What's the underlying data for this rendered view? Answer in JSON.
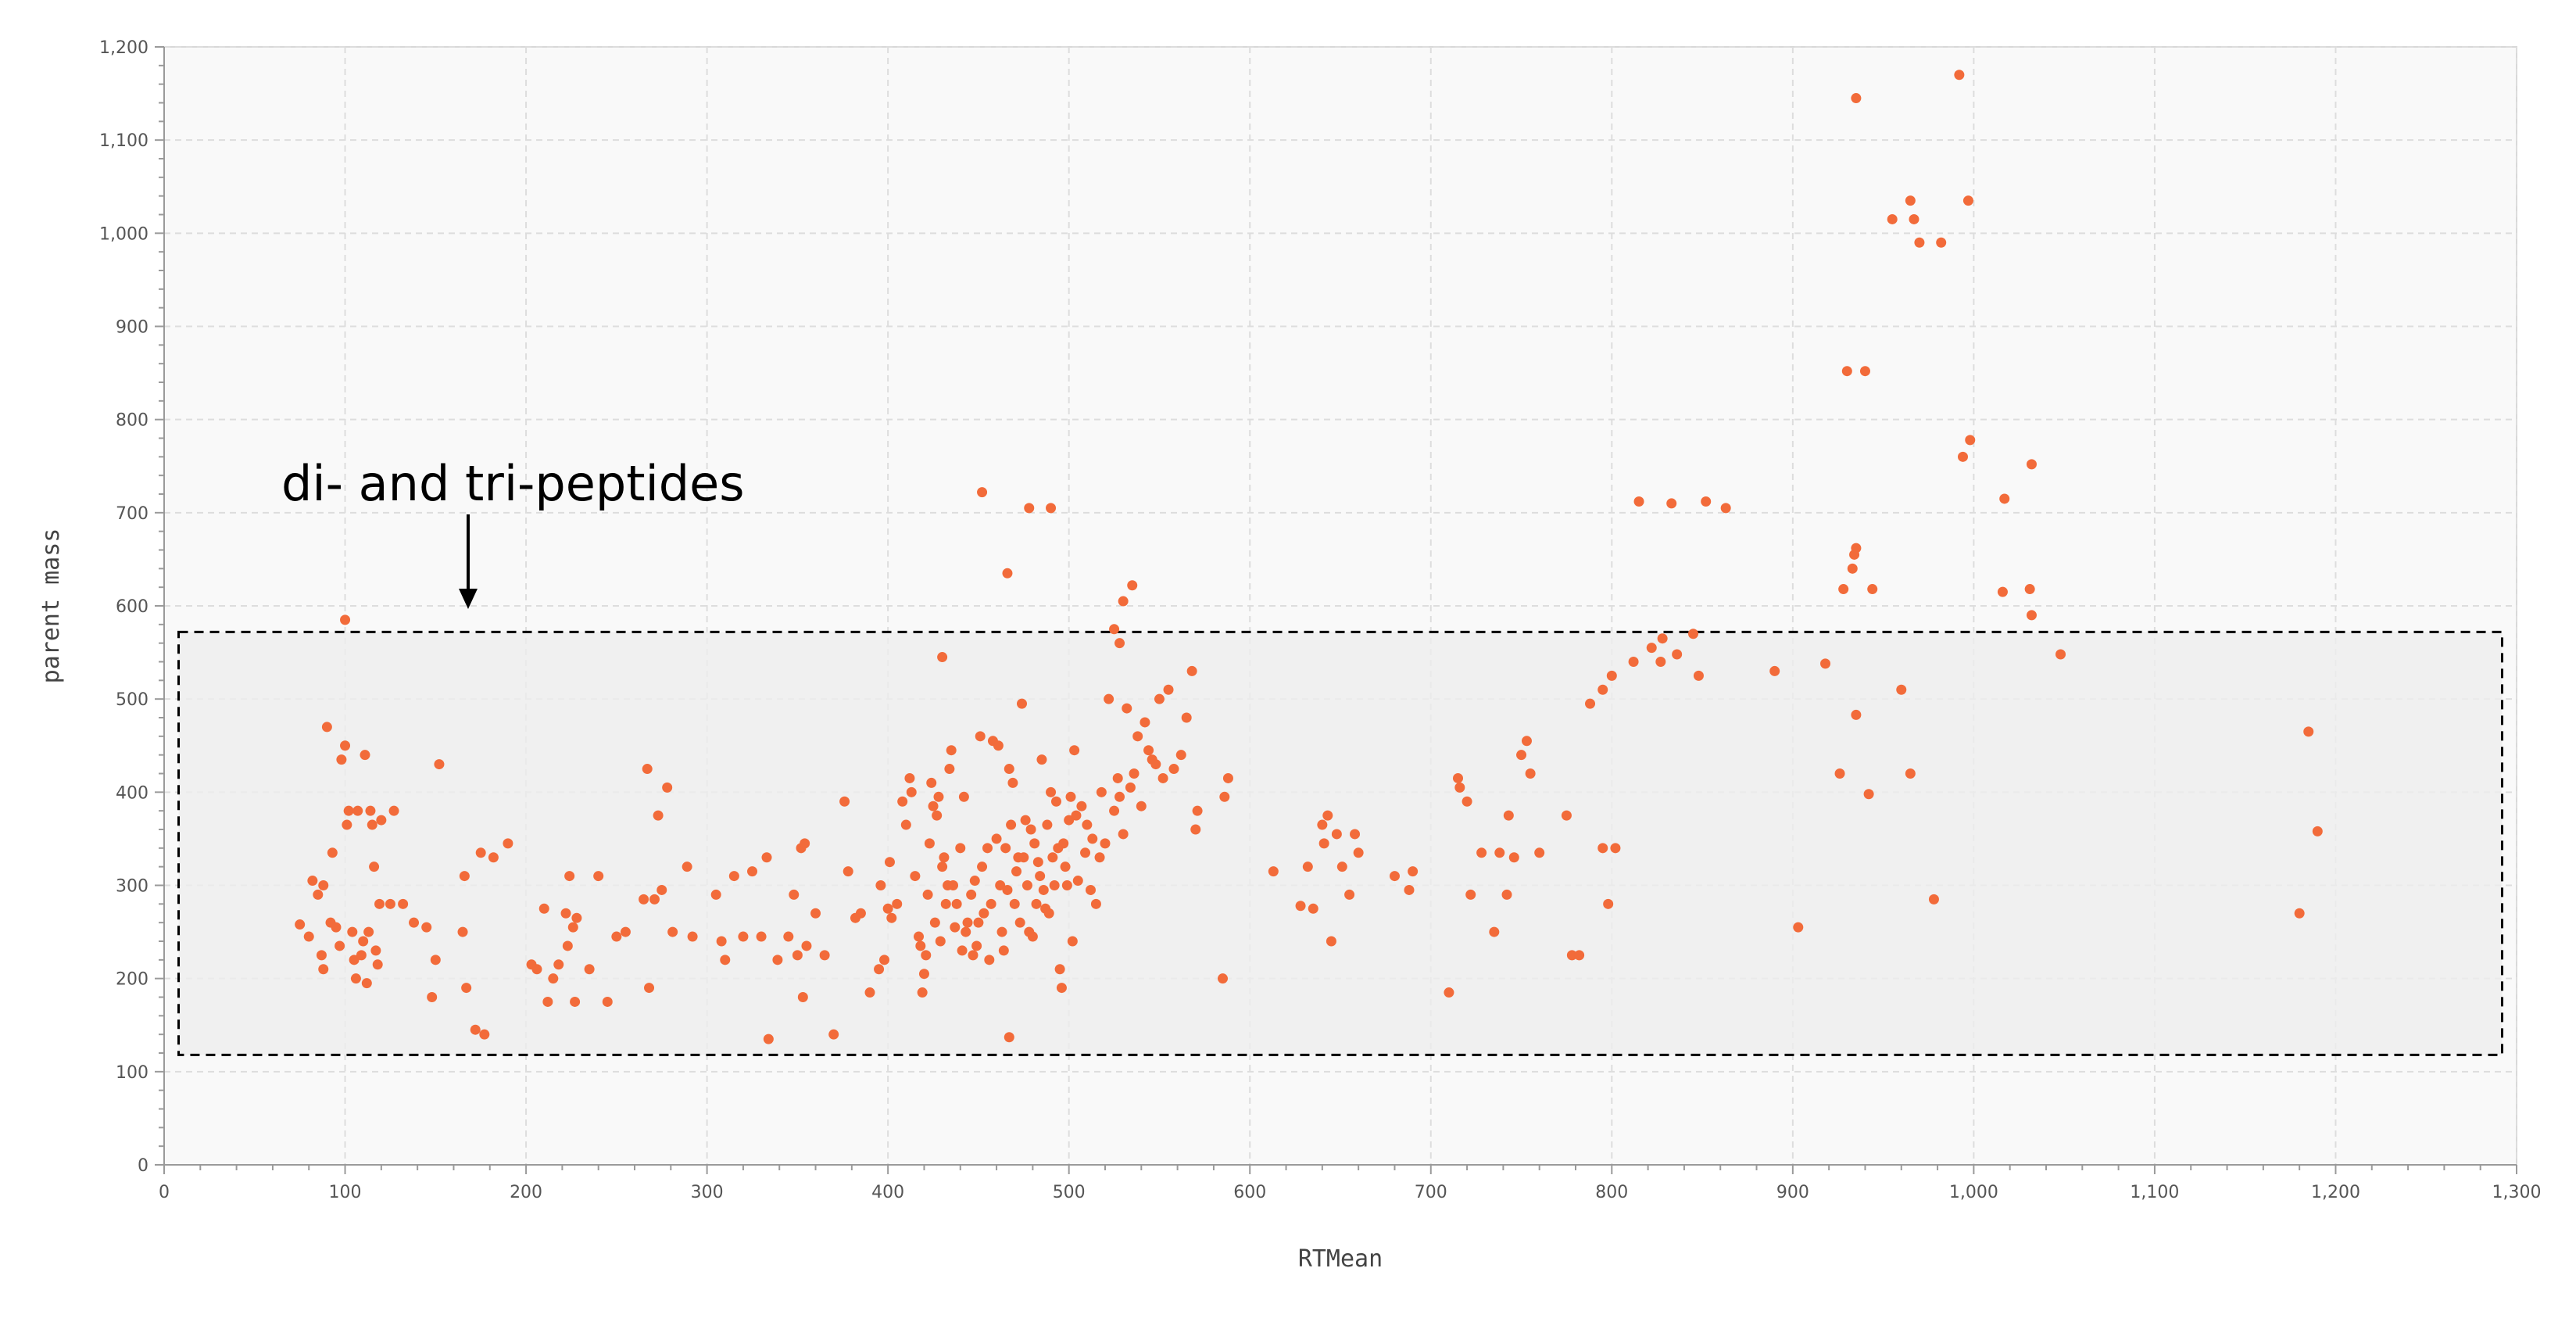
{
  "chart_data": {
    "type": "scatter",
    "title": "",
    "xlabel": "RTMean",
    "ylabel": "parent mass",
    "xlim": [
      0,
      1300
    ],
    "ylim": [
      0,
      1200
    ],
    "x_ticks": [
      "0",
      "100",
      "200",
      "300",
      "400",
      "500",
      "600",
      "700",
      "800",
      "900",
      "1,000",
      "1,100",
      "1,200",
      "1,300"
    ],
    "y_ticks": [
      "0",
      "100",
      "200",
      "300",
      "400",
      "500",
      "600",
      "700",
      "800",
      "900",
      "1,000",
      "1,100",
      "1,200"
    ],
    "grid": true,
    "point_color": "#f26b3a",
    "annotation": {
      "text": "di- and tri-peptides",
      "arrow_to": [
        168,
        600
      ],
      "box": {
        "x": [
          8,
          1292
        ],
        "y": [
          118,
          572
        ]
      }
    },
    "points": [
      [
        100,
        585
      ],
      [
        452,
        722
      ],
      [
        478,
        705
      ],
      [
        490,
        705
      ],
      [
        466,
        635
      ],
      [
        535,
        622
      ],
      [
        530,
        605
      ],
      [
        525,
        575
      ],
      [
        528,
        560
      ],
      [
        430,
        545
      ],
      [
        935,
        1145
      ],
      [
        992,
        1170
      ],
      [
        955,
        1015
      ],
      [
        965,
        1035
      ],
      [
        967,
        1015
      ],
      [
        970,
        990
      ],
      [
        982,
        990
      ],
      [
        997,
        1035
      ],
      [
        930,
        852
      ],
      [
        940,
        852
      ],
      [
        994,
        760
      ],
      [
        998,
        778
      ],
      [
        1017,
        715
      ],
      [
        1032,
        752
      ],
      [
        815,
        712
      ],
      [
        833,
        710
      ],
      [
        852,
        712
      ],
      [
        863,
        705
      ],
      [
        928,
        618
      ],
      [
        933,
        640
      ],
      [
        934,
        655
      ],
      [
        935,
        662
      ],
      [
        944,
        618
      ],
      [
        1016,
        615
      ],
      [
        1031,
        618
      ],
      [
        1032,
        590
      ],
      [
        1048,
        548
      ],
      [
        828,
        565
      ],
      [
        845,
        570
      ],
      [
        822,
        555
      ],
      [
        827,
        540
      ],
      [
        836,
        548
      ],
      [
        812,
        540
      ],
      [
        848,
        525
      ],
      [
        800,
        525
      ],
      [
        795,
        510
      ],
      [
        788,
        495
      ],
      [
        890,
        530
      ],
      [
        918,
        538
      ],
      [
        960,
        510
      ],
      [
        935,
        483
      ],
      [
        926,
        420
      ],
      [
        965,
        420
      ],
      [
        942,
        398
      ],
      [
        978,
        285
      ],
      [
        903,
        255
      ],
      [
        1185,
        465
      ],
      [
        1190,
        358
      ],
      [
        1180,
        270
      ],
      [
        75,
        258
      ],
      [
        80,
        245
      ],
      [
        82,
        305
      ],
      [
        85,
        290
      ],
      [
        88,
        300
      ],
      [
        87,
        225
      ],
      [
        88,
        210
      ],
      [
        90,
        470
      ],
      [
        92,
        260
      ],
      [
        95,
        255
      ],
      [
        93,
        335
      ],
      [
        97,
        235
      ],
      [
        98,
        435
      ],
      [
        100,
        450
      ],
      [
        101,
        365
      ],
      [
        102,
        380
      ],
      [
        104,
        250
      ],
      [
        105,
        220
      ],
      [
        106,
        200
      ],
      [
        107,
        380
      ],
      [
        109,
        225
      ],
      [
        110,
        240
      ],
      [
        111,
        440
      ],
      [
        112,
        195
      ],
      [
        113,
        250
      ],
      [
        114,
        380
      ],
      [
        115,
        365
      ],
      [
        116,
        320
      ],
      [
        117,
        230
      ],
      [
        118,
        215
      ],
      [
        119,
        280
      ],
      [
        120,
        370
      ],
      [
        125,
        280
      ],
      [
        127,
        380
      ],
      [
        132,
        280
      ],
      [
        138,
        260
      ],
      [
        145,
        255
      ],
      [
        148,
        180
      ],
      [
        150,
        220
      ],
      [
        152,
        430
      ],
      [
        165,
        250
      ],
      [
        166,
        310
      ],
      [
        167,
        190
      ],
      [
        172,
        145
      ],
      [
        175,
        335
      ],
      [
        177,
        140
      ],
      [
        182,
        330
      ],
      [
        190,
        345
      ],
      [
        203,
        215
      ],
      [
        206,
        210
      ],
      [
        210,
        275
      ],
      [
        212,
        175
      ],
      [
        215,
        200
      ],
      [
        218,
        215
      ],
      [
        222,
        270
      ],
      [
        223,
        235
      ],
      [
        224,
        310
      ],
      [
        226,
        255
      ],
      [
        227,
        175
      ],
      [
        228,
        265
      ],
      [
        235,
        210
      ],
      [
        240,
        310
      ],
      [
        245,
        175
      ],
      [
        250,
        245
      ],
      [
        255,
        250
      ],
      [
        265,
        285
      ],
      [
        267,
        425
      ],
      [
        268,
        190
      ],
      [
        271,
        285
      ],
      [
        273,
        375
      ],
      [
        275,
        295
      ],
      [
        278,
        405
      ],
      [
        281,
        250
      ],
      [
        289,
        320
      ],
      [
        292,
        245
      ],
      [
        305,
        290
      ],
      [
        308,
        240
      ],
      [
        310,
        220
      ],
      [
        315,
        310
      ],
      [
        320,
        245
      ],
      [
        325,
        315
      ],
      [
        330,
        245
      ],
      [
        333,
        330
      ],
      [
        334,
        135
      ],
      [
        339,
        220
      ],
      [
        345,
        245
      ],
      [
        348,
        290
      ],
      [
        350,
        225
      ],
      [
        352,
        340
      ],
      [
        353,
        180
      ],
      [
        354,
        345
      ],
      [
        355,
        235
      ],
      [
        360,
        270
      ],
      [
        365,
        225
      ],
      [
        370,
        140
      ],
      [
        376,
        390
      ],
      [
        378,
        315
      ],
      [
        382,
        265
      ],
      [
        385,
        270
      ],
      [
        390,
        185
      ],
      [
        395,
        210
      ],
      [
        396,
        300
      ],
      [
        398,
        220
      ],
      [
        400,
        275
      ],
      [
        401,
        325
      ],
      [
        402,
        265
      ],
      [
        405,
        280
      ],
      [
        408,
        390
      ],
      [
        410,
        365
      ],
      [
        412,
        415
      ],
      [
        413,
        400
      ],
      [
        415,
        310
      ],
      [
        417,
        245
      ],
      [
        418,
        235
      ],
      [
        419,
        185
      ],
      [
        420,
        205
      ],
      [
        421,
        225
      ],
      [
        422,
        290
      ],
      [
        423,
        345
      ],
      [
        424,
        410
      ],
      [
        425,
        385
      ],
      [
        426,
        260
      ],
      [
        427,
        375
      ],
      [
        428,
        395
      ],
      [
        429,
        240
      ],
      [
        430,
        320
      ],
      [
        431,
        330
      ],
      [
        432,
        280
      ],
      [
        433,
        300
      ],
      [
        434,
        425
      ],
      [
        435,
        445
      ],
      [
        436,
        300
      ],
      [
        437,
        255
      ],
      [
        438,
        280
      ],
      [
        440,
        340
      ],
      [
        441,
        230
      ],
      [
        442,
        395
      ],
      [
        443,
        250
      ],
      [
        444,
        260
      ],
      [
        446,
        290
      ],
      [
        447,
        225
      ],
      [
        448,
        305
      ],
      [
        449,
        235
      ],
      [
        450,
        260
      ],
      [
        451,
        460
      ],
      [
        452,
        320
      ],
      [
        453,
        270
      ],
      [
        455,
        340
      ],
      [
        456,
        220
      ],
      [
        457,
        280
      ],
      [
        458,
        455
      ],
      [
        460,
        350
      ],
      [
        461,
        450
      ],
      [
        462,
        300
      ],
      [
        463,
        250
      ],
      [
        464,
        230
      ],
      [
        465,
        340
      ],
      [
        466,
        295
      ],
      [
        467,
        425
      ],
      [
        468,
        365
      ],
      [
        469,
        410
      ],
      [
        470,
        280
      ],
      [
        471,
        315
      ],
      [
        472,
        330
      ],
      [
        473,
        260
      ],
      [
        474,
        495
      ],
      [
        475,
        330
      ],
      [
        476,
        370
      ],
      [
        477,
        300
      ],
      [
        478,
        250
      ],
      [
        479,
        360
      ],
      [
        480,
        245
      ],
      [
        481,
        345
      ],
      [
        482,
        280
      ],
      [
        483,
        325
      ],
      [
        484,
        310
      ],
      [
        485,
        435
      ],
      [
        486,
        295
      ],
      [
        487,
        275
      ],
      [
        488,
        365
      ],
      [
        489,
        270
      ],
      [
        490,
        400
      ],
      [
        491,
        330
      ],
      [
        492,
        300
      ],
      [
        493,
        390
      ],
      [
        494,
        340
      ],
      [
        495,
        210
      ],
      [
        496,
        190
      ],
      [
        497,
        345
      ],
      [
        498,
        320
      ],
      [
        499,
        300
      ],
      [
        500,
        370
      ],
      [
        501,
        395
      ],
      [
        502,
        240
      ],
      [
        503,
        445
      ],
      [
        504,
        375
      ],
      [
        505,
        305
      ],
      [
        507,
        385
      ],
      [
        509,
        335
      ],
      [
        510,
        365
      ],
      [
        512,
        295
      ],
      [
        513,
        350
      ],
      [
        515,
        280
      ],
      [
        517,
        330
      ],
      [
        518,
        400
      ],
      [
        520,
        345
      ],
      [
        522,
        500
      ],
      [
        525,
        380
      ],
      [
        527,
        415
      ],
      [
        528,
        395
      ],
      [
        530,
        355
      ],
      [
        532,
        490
      ],
      [
        534,
        405
      ],
      [
        536,
        420
      ],
      [
        538,
        460
      ],
      [
        540,
        385
      ],
      [
        542,
        475
      ],
      [
        544,
        445
      ],
      [
        546,
        435
      ],
      [
        548,
        430
      ],
      [
        550,
        500
      ],
      [
        552,
        415
      ],
      [
        555,
        510
      ],
      [
        558,
        425
      ],
      [
        562,
        440
      ],
      [
        565,
        480
      ],
      [
        568,
        530
      ],
      [
        570,
        360
      ],
      [
        571,
        380
      ],
      [
        467,
        137
      ],
      [
        585,
        200
      ],
      [
        586,
        395
      ],
      [
        588,
        415
      ],
      [
        613,
        315
      ],
      [
        628,
        278
      ],
      [
        632,
        320
      ],
      [
        635,
        275
      ],
      [
        640,
        365
      ],
      [
        641,
        345
      ],
      [
        643,
        375
      ],
      [
        645,
        240
      ],
      [
        648,
        355
      ],
      [
        651,
        320
      ],
      [
        655,
        290
      ],
      [
        658,
        355
      ],
      [
        660,
        335
      ],
      [
        680,
        310
      ],
      [
        688,
        295
      ],
      [
        690,
        315
      ],
      [
        710,
        185
      ],
      [
        715,
        415
      ],
      [
        716,
        405
      ],
      [
        720,
        390
      ],
      [
        722,
        290
      ],
      [
        728,
        335
      ],
      [
        735,
        250
      ],
      [
        738,
        335
      ],
      [
        742,
        290
      ],
      [
        743,
        375
      ],
      [
        746,
        330
      ],
      [
        750,
        440
      ],
      [
        753,
        455
      ],
      [
        755,
        420
      ],
      [
        760,
        335
      ],
      [
        775,
        375
      ],
      [
        778,
        225
      ],
      [
        782,
        225
      ],
      [
        798,
        280
      ],
      [
        795,
        340
      ],
      [
        802,
        340
      ]
    ]
  }
}
